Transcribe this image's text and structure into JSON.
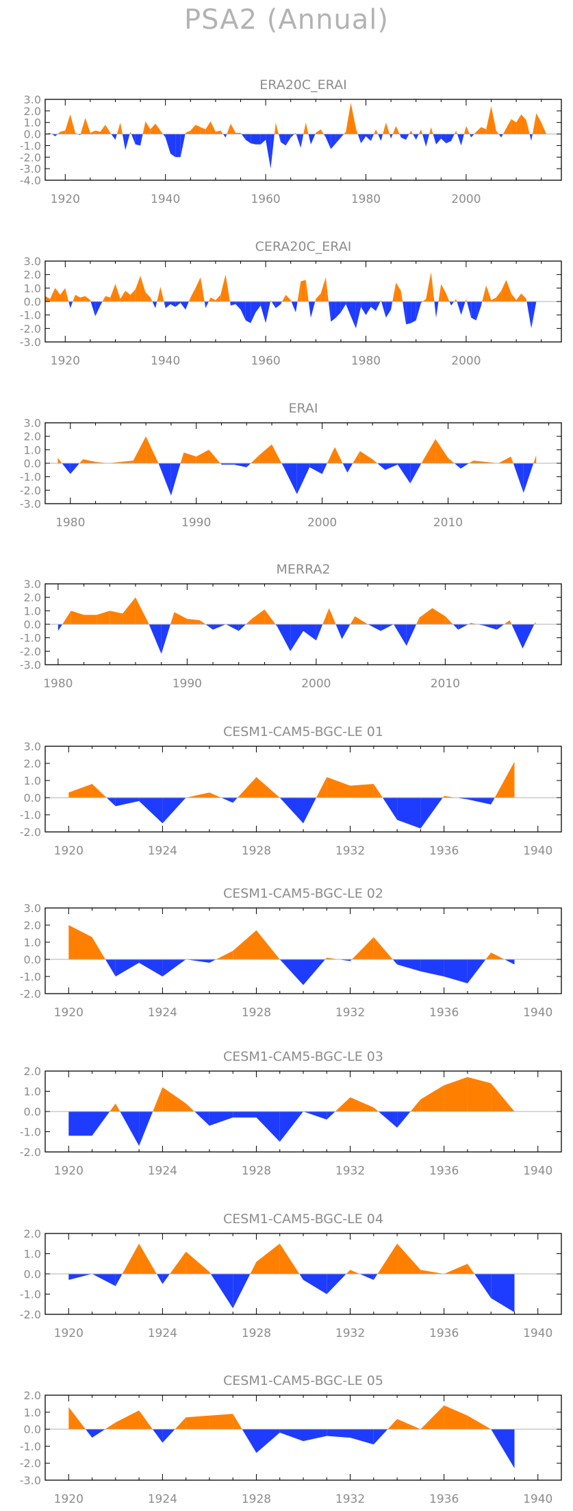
{
  "title": "PSA2  (Annual)",
  "colors": {
    "positive": "#ff8000",
    "negative": "#1e3cff",
    "frame": "#000000",
    "text": "#8c8c8c"
  },
  "chart_data": [
    {
      "type": "area",
      "title": "ERA20C_ERAI",
      "xlim": [
        1916,
        2019
      ],
      "ylim": [
        -4,
        3
      ],
      "yticks": [
        "3.0",
        "2.0",
        "1.0",
        "0.0",
        "-1.0",
        "-2.0",
        "-3.0",
        "-4.0"
      ],
      "xticks": [
        1920,
        1940,
        1960,
        1980,
        2000
      ],
      "x": [
        1916,
        1917,
        1918,
        1919,
        1920,
        1921,
        1922,
        1923,
        1924,
        1925,
        1926,
        1927,
        1928,
        1929,
        1930,
        1931,
        1932,
        1933,
        1934,
        1935,
        1936,
        1937,
        1938,
        1939,
        1940,
        1941,
        1942,
        1943,
        1944,
        1945,
        1946,
        1947,
        1948,
        1949,
        1950,
        1951,
        1952,
        1953,
        1954,
        1955,
        1956,
        1957,
        1958,
        1959,
        1960,
        1961,
        1962,
        1963,
        1964,
        1965,
        1966,
        1967,
        1968,
        1969,
        1970,
        1971,
        1972,
        1973,
        1974,
        1975,
        1976,
        1977,
        1978,
        1979,
        1980,
        1981,
        1982,
        1983,
        1984,
        1985,
        1986,
        1987,
        1988,
        1989,
        1990,
        1991,
        1992,
        1993,
        1994,
        1995,
        1996,
        1997,
        1998,
        1999,
        2000,
        2001,
        2002,
        2003,
        2004,
        2005,
        2006,
        2007,
        2008,
        2009,
        2010,
        2011,
        2012,
        2013,
        2014,
        2015,
        2016,
        2017,
        2018
      ],
      "values": [
        0,
        0.1,
        -0.2,
        0.2,
        0.3,
        1.7,
        0.1,
        -0.1,
        1.4,
        0.1,
        0.3,
        0.2,
        0.8,
        0.1,
        -0.5,
        1.0,
        -1.4,
        0.2,
        -0.9,
        -1.0,
        1.1,
        0.4,
        0.9,
        0.3,
        -0.3,
        -1.7,
        -2.0,
        -2.0,
        0.1,
        0.3,
        0.8,
        0.6,
        0.4,
        1.1,
        0.2,
        0.3,
        -0.3,
        0.9,
        0.1,
        0.1,
        -0.5,
        -0.8,
        -0.9,
        -0.9,
        -0.5,
        -3.0,
        1.0,
        -0.7,
        -1.0,
        -0.3,
        0.1,
        -1.2,
        1.0,
        -0.9,
        0.1,
        0.4,
        -0.3,
        -1.3,
        -0.8,
        -0.3,
        0.2,
        2.7,
        0.5,
        -0.8,
        -0.2,
        -0.6,
        0.4,
        -0.6,
        1.0,
        -0.4,
        0.7,
        -0.3,
        -0.5,
        0.3,
        -0.5,
        0.4,
        -1.1,
        0.6,
        -0.9,
        -0.4,
        -0.8,
        -0.6,
        0.3,
        -1.0,
        0.7,
        -0.3,
        0.2,
        0.6,
        0.4,
        2.4,
        0.3,
        -0.3,
        0.5,
        1.3,
        1.0,
        1.7,
        1.2,
        -0.6,
        1.8,
        1.0,
        0,
        0,
        0
      ]
    },
    {
      "type": "area",
      "title": "CERA20C_ERAI",
      "xlim": [
        1916,
        2019
      ],
      "ylim": [
        -3,
        3
      ],
      "yticks": [
        "3.0",
        "2.0",
        "1.0",
        "0.0",
        "-1.0",
        "-2.0",
        "-3.0"
      ],
      "xticks": [
        1920,
        1940,
        1960,
        1980,
        2000
      ],
      "x": [
        1916,
        1917,
        1918,
        1919,
        1920,
        1921,
        1922,
        1923,
        1924,
        1925,
        1926,
        1927,
        1928,
        1929,
        1930,
        1931,
        1932,
        1933,
        1934,
        1935,
        1936,
        1937,
        1938,
        1939,
        1940,
        1941,
        1942,
        1943,
        1944,
        1945,
        1946,
        1947,
        1948,
        1949,
        1950,
        1951,
        1952,
        1953,
        1954,
        1955,
        1956,
        1957,
        1958,
        1959,
        1960,
        1961,
        1962,
        1963,
        1964,
        1965,
        1966,
        1967,
        1968,
        1969,
        1970,
        1971,
        1972,
        1973,
        1974,
        1975,
        1976,
        1977,
        1978,
        1979,
        1980,
        1981,
        1982,
        1983,
        1984,
        1985,
        1986,
        1987,
        1988,
        1989,
        1990,
        1991,
        1992,
        1993,
        1994,
        1995,
        1996,
        1997,
        1998,
        1999,
        2000,
        2001,
        2002,
        2003,
        2004,
        2005,
        2006,
        2007,
        2008,
        2009,
        2010,
        2011,
        2012,
        2013,
        2014,
        2015,
        2016,
        2017,
        2018
      ],
      "values": [
        0.4,
        0.2,
        1.0,
        0.5,
        1.0,
        -0.5,
        0.5,
        0.3,
        0.4,
        0.1,
        -1.1,
        -0.3,
        0.4,
        0.3,
        1.3,
        0.2,
        0.8,
        0.5,
        0.9,
        1.9,
        0.7,
        0.3,
        -0.5,
        1.1,
        -0.5,
        -0.2,
        -0.4,
        -0.1,
        -0.6,
        0.3,
        1.0,
        1.8,
        -0.5,
        0.3,
        0.1,
        0.5,
        2.0,
        -0.3,
        -0.2,
        -0.6,
        -1.4,
        -1.6,
        -0.8,
        -0.3,
        -1.6,
        0.1,
        -0.5,
        -0.2,
        0.5,
        0.1,
        -0.8,
        1.5,
        1.6,
        -1.2,
        0.2,
        0.6,
        1.8,
        -1.5,
        -1.2,
        -0.8,
        -0.2,
        -1.1,
        -2.0,
        -0.4,
        -1.0,
        -0.4,
        -0.7,
        0.1,
        -1.2,
        -0.6,
        1.4,
        0.8,
        -1.7,
        -1.6,
        -1.4,
        -0.1,
        0.2,
        2.2,
        -1.2,
        1.3,
        0.6,
        -0.3,
        0.2,
        -1.0,
        0.2,
        -1.2,
        -1.4,
        -0.3,
        1.2,
        0.1,
        0.3,
        0.8,
        1.6,
        0.6,
        0.1,
        0.6,
        0.2,
        -2.0,
        0,
        0,
        0,
        0,
        0
      ]
    },
    {
      "type": "area",
      "title": "ERAI",
      "xlim": [
        1978,
        2019
      ],
      "ylim": [
        -3,
        3
      ],
      "yticks": [
        "3.0",
        "2.0",
        "1.0",
        "0.0",
        "-1.0",
        "-2.0",
        "-3.0"
      ],
      "xticks": [
        1980,
        1990,
        2000,
        2010
      ],
      "x": [
        1979,
        1980,
        1981,
        1982,
        1983,
        1984,
        1985,
        1986,
        1987,
        1988,
        1989,
        1990,
        1991,
        1992,
        1993,
        1994,
        1995,
        1996,
        1997,
        1998,
        1999,
        2000,
        2001,
        2002,
        2003,
        2004,
        2005,
        2006,
        2007,
        2008,
        2009,
        2010,
        2011,
        2012,
        2013,
        2014,
        2015,
        2016,
        2017
      ],
      "values": [
        0.4,
        -0.8,
        0.3,
        0.1,
        0,
        0.1,
        0.2,
        2.0,
        0,
        -2.4,
        0.8,
        0.5,
        1.0,
        -0.1,
        -0.1,
        -0.3,
        0.6,
        1.4,
        -0.4,
        -2.3,
        -0.3,
        -0.8,
        1.2,
        -0.7,
        0.9,
        0.3,
        -0.5,
        -0.1,
        -1.5,
        0.2,
        1.8,
        0.4,
        -0.4,
        0.2,
        0.1,
        0,
        0.5,
        -2.2,
        0.6
      ]
    },
    {
      "type": "area",
      "title": "MERRA2",
      "xlim": [
        1979,
        2019
      ],
      "ylim": [
        -3,
        3
      ],
      "yticks": [
        "3.0",
        "2.0",
        "1.0",
        "0.0",
        "-1.0",
        "-2.0",
        "-3.0"
      ],
      "xticks": [
        1980,
        1990,
        2000,
        2010
      ],
      "x": [
        1980,
        1981,
        1982,
        1983,
        1984,
        1985,
        1986,
        1987,
        1988,
        1989,
        1990,
        1991,
        1992,
        1993,
        1994,
        1995,
        1996,
        1997,
        1998,
        1999,
        2000,
        2001,
        2002,
        2003,
        2004,
        2005,
        2006,
        2007,
        2008,
        2009,
        2010,
        2011,
        2012,
        2013,
        2014,
        2015,
        2016,
        2017
      ],
      "values": [
        -0.5,
        1.0,
        0.7,
        0.7,
        1.0,
        0.8,
        2.0,
        0.1,
        -2.2,
        0.9,
        0.4,
        0.3,
        -0.4,
        0,
        -0.5,
        0.4,
        1.1,
        -0.2,
        -2.0,
        -0.5,
        -1.2,
        1.2,
        -1.1,
        0.6,
        0,
        -0.5,
        0,
        -1.6,
        0.5,
        1.2,
        0.6,
        -0.4,
        0.1,
        -0.1,
        -0.4,
        0.3,
        -1.8,
        0.2
      ]
    },
    {
      "type": "area",
      "title": "CESM1-CAM5-BGC-LE 01",
      "xlim": [
        1919,
        1941
      ],
      "ylim": [
        -2,
        3
      ],
      "yticks": [
        "3.0",
        "2.0",
        "1.0",
        "0.0",
        "-1.0",
        "-2.0"
      ],
      "xticks": [
        1920,
        1924,
        1928,
        1932,
        1936,
        1940
      ],
      "x": [
        1920,
        1921,
        1922,
        1923,
        1924,
        1925,
        1926,
        1927,
        1928,
        1929,
        1930,
        1931,
        1932,
        1933,
        1934,
        1935,
        1936,
        1937,
        1938,
        1939
      ],
      "values": [
        0.3,
        0.8,
        -0.5,
        -0.2,
        -1.5,
        0,
        0.3,
        -0.3,
        1.2,
        0,
        -1.5,
        1.2,
        0.7,
        0.8,
        -1.3,
        -1.8,
        0.1,
        -0.1,
        -0.4,
        2.1
      ]
    },
    {
      "type": "area",
      "title": "CESM1-CAM5-BGC-LE 02",
      "xlim": [
        1919,
        1941
      ],
      "ylim": [
        -2,
        3
      ],
      "yticks": [
        "3.0",
        "2.0",
        "1.0",
        "0.0",
        "-1.0",
        "-2.0"
      ],
      "xticks": [
        1920,
        1924,
        1928,
        1932,
        1936,
        1940
      ],
      "x": [
        1920,
        1921,
        1922,
        1923,
        1924,
        1925,
        1926,
        1927,
        1928,
        1929,
        1930,
        1931,
        1932,
        1933,
        1934,
        1935,
        1936,
        1937,
        1938,
        1939
      ],
      "values": [
        2.0,
        1.3,
        -1.0,
        -0.2,
        -1.0,
        0,
        -0.2,
        0.5,
        1.7,
        0,
        -1.5,
        0.1,
        -0.1,
        1.3,
        -0.3,
        -0.7,
        -1.0,
        -1.4,
        0.4,
        -0.3
      ]
    },
    {
      "type": "area",
      "title": "CESM1-CAM5-BGC-LE 03",
      "xlim": [
        1919,
        1941
      ],
      "ylim": [
        -2,
        2
      ],
      "yticks": [
        "2.0",
        "1.0",
        "0.0",
        "-1.0",
        "-2.0"
      ],
      "xticks": [
        1920,
        1924,
        1928,
        1932,
        1936,
        1940
      ],
      "x": [
        1920,
        1921,
        1922,
        1923,
        1924,
        1925,
        1926,
        1927,
        1928,
        1929,
        1930,
        1931,
        1932,
        1933,
        1934,
        1935,
        1936,
        1937,
        1938,
        1939
      ],
      "values": [
        -1.2,
        -1.2,
        0.4,
        -1.7,
        1.2,
        0.4,
        -0.7,
        -0.3,
        -0.3,
        -1.5,
        0,
        -0.4,
        0.7,
        0.2,
        -0.8,
        0.6,
        1.3,
        1.7,
        1.4,
        0
      ]
    },
    {
      "type": "area",
      "title": "CESM1-CAM5-BGC-LE 04",
      "xlim": [
        1919,
        1941
      ],
      "ylim": [
        -2,
        2
      ],
      "yticks": [
        "2.0",
        "1.0",
        "0.0",
        "-1.0",
        "-2.0"
      ],
      "xticks": [
        1920,
        1924,
        1928,
        1932,
        1936,
        1940
      ],
      "x": [
        1920,
        1921,
        1922,
        1923,
        1924,
        1925,
        1926,
        1927,
        1928,
        1929,
        1930,
        1931,
        1932,
        1933,
        1934,
        1935,
        1936,
        1937,
        1938,
        1939
      ],
      "values": [
        -0.3,
        0,
        -0.6,
        1.5,
        -0.5,
        1.1,
        0.1,
        -1.7,
        0.6,
        1.5,
        -0.3,
        -1.0,
        0.2,
        -0.3,
        1.5,
        0.2,
        0,
        0.5,
        -1.2,
        -1.9
      ]
    },
    {
      "type": "area",
      "title": "CESM1-CAM5-BGC-LE 05",
      "xlim": [
        1919,
        1941
      ],
      "ylim": [
        -3,
        2
      ],
      "yticks": [
        "2.0",
        "1.0",
        "0.0",
        "-1.0",
        "-2.0",
        "-3.0"
      ],
      "xticks": [
        1920,
        1924,
        1928,
        1932,
        1936,
        1940
      ],
      "x": [
        1920,
        1921,
        1922,
        1923,
        1924,
        1925,
        1926,
        1927,
        1928,
        1929,
        1930,
        1931,
        1932,
        1933,
        1934,
        1935,
        1936,
        1937,
        1938,
        1939
      ],
      "values": [
        1.3,
        -0.5,
        0.4,
        1.1,
        -0.8,
        0.7,
        0.8,
        0.9,
        -1.4,
        -0.2,
        -0.7,
        -0.4,
        -0.5,
        -0.9,
        0.6,
        0,
        1.4,
        0.8,
        0,
        -2.3
      ]
    }
  ]
}
